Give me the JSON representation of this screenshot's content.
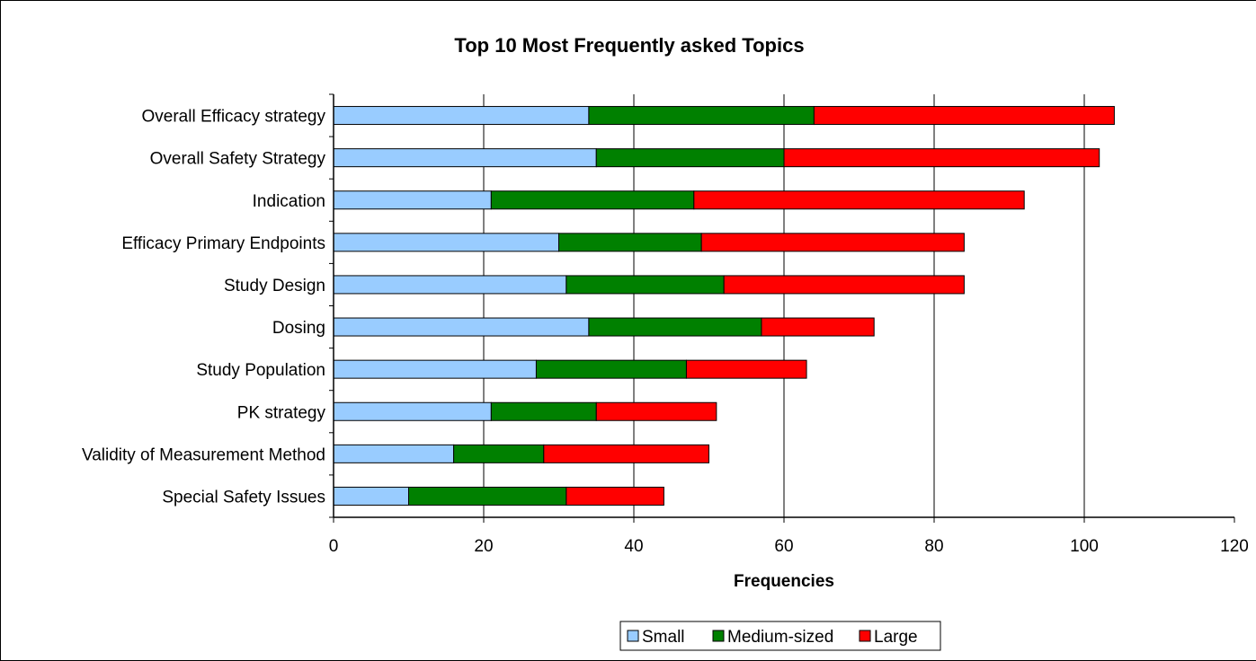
{
  "chart_data": {
    "type": "bar",
    "orientation": "horizontal",
    "stacked": true,
    "title": "Top 10 Most Frequently asked Topics",
    "xlabel": "Frequencies",
    "ylabel": "",
    "xlim": [
      0,
      120
    ],
    "xticks": [
      "0",
      "20",
      "40",
      "60",
      "80",
      "100",
      "120"
    ],
    "grid": "vertical",
    "legend_position": "bottom",
    "categories": [
      "Overall Efficacy strategy",
      "Overall Safety Strategy",
      "Indication",
      "Efficacy Primary Endpoints",
      "Study Design",
      "Dosing",
      "Study Population",
      "PK strategy",
      "Validity of Measurement Method",
      "Special Safety Issues"
    ],
    "series": [
      {
        "name": "Small",
        "color": "#99ccff",
        "values": [
          34,
          35,
          21,
          30,
          31,
          34,
          27,
          21,
          16,
          10
        ]
      },
      {
        "name": "Medium-sized",
        "color": "#008000",
        "values": [
          30,
          25,
          27,
          19,
          21,
          23,
          20,
          14,
          12,
          21
        ]
      },
      {
        "name": "Large",
        "color": "#ff0000",
        "values": [
          40,
          42,
          44,
          35,
          32,
          15,
          16,
          16,
          22,
          13
        ]
      }
    ]
  }
}
